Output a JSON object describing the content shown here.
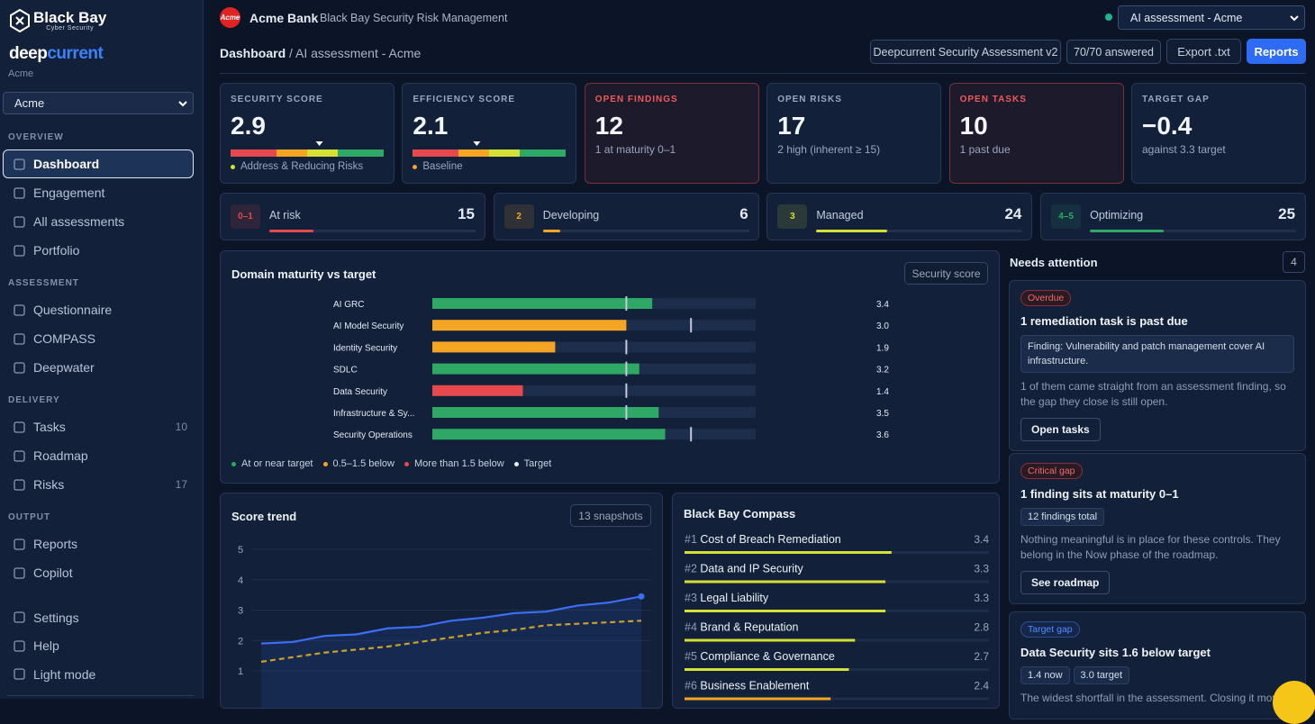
{
  "sidebar": {
    "brand": "Black Bay",
    "brand_sub": "Cyber Security",
    "product": [
      "deep",
      "current"
    ],
    "org": "Acme",
    "org_select": "Acme",
    "sections": [
      {
        "title": "OVERVIEW",
        "items": [
          {
            "label": "Dashboard"
          },
          {
            "label": "Engagement"
          },
          {
            "label": "All assessments"
          },
          {
            "label": "Portfolio"
          }
        ]
      },
      {
        "title": "ASSESSMENT",
        "items": [
          {
            "label": "Questionnaire"
          },
          {
            "label": "COMPASS"
          },
          {
            "label": "Deepwater"
          }
        ]
      },
      {
        "title": "DELIVERY",
        "items": [
          {
            "label": "Tasks",
            "count": 10
          },
          {
            "label": "Roadmap"
          },
          {
            "label": "Risks",
            "count": 17
          }
        ]
      },
      {
        "title": "OUTPUT",
        "items": [
          {
            "label": "Reports"
          },
          {
            "label": "Copilot"
          }
        ]
      }
    ],
    "footer": [
      {
        "label": "Settings"
      },
      {
        "label": "Help"
      },
      {
        "label": "Light mode"
      }
    ]
  },
  "header": {
    "logo": "Acme",
    "company": "Acme Bank",
    "app": "Black Bay Security Risk Management",
    "assessment_select": "AI assessment - Acme",
    "breadcrumb_current": "Dashboard",
    "breadcrumb_rest": "/ AI assessment - Acme",
    "actions": [
      "Deepcurrent Security Assessment v2",
      "70/70 answered",
      "Export .txt",
      "Reports"
    ]
  },
  "kpis": {
    "gauge_range": [
      0,
      5
    ],
    "cards": [
      {
        "label": "SECURITY SCORE",
        "value": 2.9,
        "note": "Address & Reducing Risks",
        "gauge": true,
        "note_color": "#d4e034"
      },
      {
        "label": "EFFICIENCY SCORE",
        "value": 2.1,
        "note": "Baseline",
        "gauge": true,
        "note_color": "#f5a524"
      },
      {
        "label": "OPEN FINDINGS",
        "value": 12,
        "note": "1 at maturity 0–1",
        "alert": true
      },
      {
        "label": "OPEN RISKS",
        "value": 17,
        "note": "2 high (inherent ≥ 15)"
      },
      {
        "label": "OPEN TASKS",
        "value": 10,
        "note": "1 past due",
        "alert": true
      },
      {
        "label": "TARGET GAP",
        "value": "−0.4",
        "note": "against 3.3 target"
      }
    ]
  },
  "maturity_levels": [
    {
      "level": "0–1",
      "label": "At risk",
      "count": 15,
      "color": "#e5484d"
    },
    {
      "level": "2",
      "label": "Developing",
      "count": 6,
      "color": "#f5a524"
    },
    {
      "level": "3",
      "label": "Managed",
      "count": 24,
      "color": "#d4e034"
    },
    {
      "level": "4–5",
      "label": "Optimizing",
      "count": 25,
      "color": "#2fa866"
    }
  ],
  "domain_chart": {
    "type": "bar",
    "title": "Domain maturity vs target",
    "control": "Security score",
    "categories": [
      "AI GRC",
      "AI Model Security",
      "Identity Security",
      "SDLC",
      "Data Security",
      "Infrastructure & Sy...",
      "Security Operations"
    ],
    "values": [
      3.4,
      3.0,
      1.9,
      3.2,
      1.4,
      3.5,
      3.6
    ],
    "value_labels": [
      "3.4",
      "3.0",
      "1.9",
      "3.2",
      "1.4",
      "3.5",
      "3.6"
    ],
    "targets": [
      3,
      4,
      3,
      3,
      3,
      3,
      4
    ],
    "colors": [
      "#2fa866",
      "#f5a524",
      "#f5a524",
      "#2fa866",
      "#e5484d",
      "#2fa866",
      "#2fa866"
    ],
    "target_color": "#c3cbd9",
    "xlim": [
      0,
      5
    ],
    "legend": [
      {
        "label": "At or near target",
        "color": "#2fa866"
      },
      {
        "label": "0.5–1.5 below",
        "color": "#f5a524"
      },
      {
        "label": "More than 1.5 below",
        "color": "#e5484d"
      },
      {
        "label": "Target",
        "color": "#e8ecf3"
      }
    ]
  },
  "trend_chart": {
    "type": "line",
    "title": "Score trend",
    "control": "13 snapshots",
    "series": [
      {
        "color": "#3b6ff5",
        "area": true,
        "values": [
          1.9,
          1.95,
          2.15,
          2.2,
          2.4,
          2.45,
          2.65,
          2.75,
          2.9,
          2.95,
          3.15,
          3.25,
          3.45
        ]
      },
      {
        "color": "#c9a227",
        "dash": true,
        "values": [
          1.3,
          1.45,
          1.6,
          1.7,
          1.8,
          1.95,
          2.1,
          2.25,
          2.35,
          2.5,
          2.55,
          2.6,
          2.65
        ]
      }
    ],
    "ylim": [
      0,
      5
    ],
    "yticks": [
      1,
      2,
      3,
      4,
      5
    ],
    "grid": true
  },
  "compass": {
    "title": "Black Bay Compass",
    "xlim": [
      0,
      5
    ],
    "items": [
      {
        "rank": "#1",
        "label": "Cost of Breach Remediation",
        "value": 3.4,
        "color": "#d4e034"
      },
      {
        "rank": "#2",
        "label": "Data and IP Security",
        "value": 3.3,
        "color": "#d4e034"
      },
      {
        "rank": "#3",
        "label": "Legal Liability",
        "value": 3.3,
        "color": "#d4e034"
      },
      {
        "rank": "#4",
        "label": "Brand & Reputation",
        "value": 2.8,
        "color": "#d4e034"
      },
      {
        "rank": "#5",
        "label": "Compliance & Governance",
        "value": 2.7,
        "color": "#d4e034"
      },
      {
        "rank": "#6",
        "label": "Business Enablement",
        "value": 2.4,
        "color": "#f5a524"
      }
    ]
  },
  "attention": {
    "title": "Needs attention",
    "count": 4,
    "cards": [
      {
        "badge": "Overdue",
        "tone": "red",
        "title": "1 remediation task is past due",
        "box": "Finding: Vulnerability and patch management cover AI infrastructure.",
        "text": "1 of them came straight from an assessment finding, so the gap they close is still open.",
        "button": "Open tasks"
      },
      {
        "badge": "Critical gap",
        "tone": "red",
        "title": "1 finding sits at maturity 0–1",
        "chips": [
          "12 findings total"
        ],
        "text": "Nothing meaningful is in place for these controls. They belong in the Now phase of the roadmap.",
        "button": "See roadmap"
      },
      {
        "badge": "Target gap",
        "tone": "blue",
        "title": "Data Security sits 1.6 below target",
        "chips": [
          "1.4 now",
          "3.0 target"
        ],
        "text": "The widest shortfall in the assessment. Closing it mov"
      }
    ]
  }
}
